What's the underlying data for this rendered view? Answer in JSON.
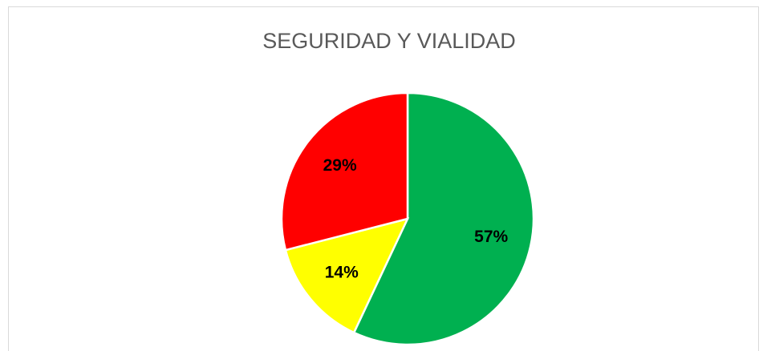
{
  "chart_data": {
    "type": "pie",
    "title": "SEGURIDAD Y VIALIDAD",
    "values": [
      57,
      14,
      29
    ],
    "value_labels": [
      "57%",
      "14%",
      "29%"
    ],
    "colors": [
      "#00b050",
      "#ffff00",
      "#ff0000"
    ],
    "start_angle": 0,
    "direction": "clockwise"
  }
}
